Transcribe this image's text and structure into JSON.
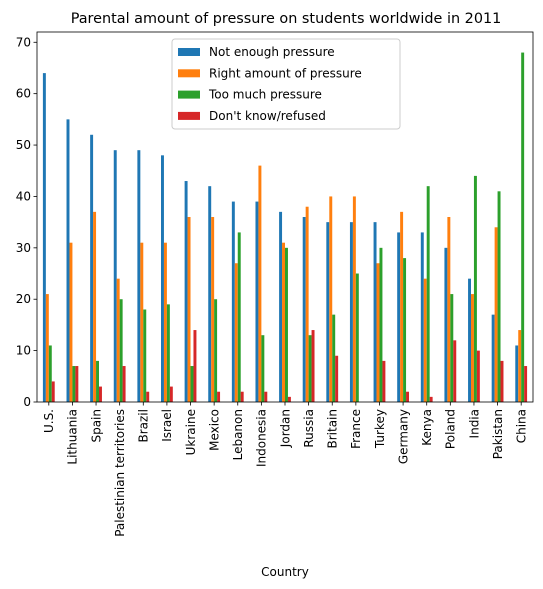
{
  "chart_data": {
    "type": "bar",
    "title": "Parental amount of pressure on students worldwide in 2011",
    "xlabel": "Country",
    "ylabel": "",
    "ylim": [
      0,
      72
    ],
    "yticks": [
      0,
      10,
      20,
      30,
      40,
      50,
      60,
      70
    ],
    "legend_position": "top-center",
    "grid": false,
    "categories": [
      "U.S.",
      "Lithuania",
      "Spain",
      "Palestinian territories",
      "Brazil",
      "Israel",
      "Ukraine",
      "Mexico",
      "Lebanon",
      "Indonesia",
      "Jordan",
      "Russia",
      "Britain",
      "France",
      "Turkey",
      "Germany",
      "Kenya",
      "Poland",
      "India",
      "Pakistan",
      "China"
    ],
    "series": [
      {
        "name": "Not enough pressure",
        "color": "#1f77b4",
        "values": [
          64,
          55,
          52,
          49,
          49,
          48,
          43,
          42,
          39,
          39,
          37,
          36,
          35,
          35,
          35,
          33,
          33,
          30,
          24,
          17,
          11
        ]
      },
      {
        "name": "Right amount of pressure",
        "color": "#ff7f0e",
        "values": [
          21,
          31,
          37,
          24,
          31,
          31,
          36,
          36,
          27,
          46,
          31,
          38,
          40,
          40,
          27,
          37,
          24,
          36,
          21,
          34,
          14
        ]
      },
      {
        "name": "Too much pressure",
        "color": "#2ca02c",
        "values": [
          11,
          7,
          8,
          20,
          18,
          19,
          7,
          20,
          33,
          13,
          30,
          13,
          17,
          25,
          30,
          28,
          42,
          21,
          44,
          41,
          68
        ]
      },
      {
        "name": "Don't know/refused",
        "color": "#d62728",
        "values": [
          4,
          7,
          3,
          7,
          2,
          3,
          14,
          2,
          2,
          2,
          1,
          14,
          9,
          0,
          8,
          2,
          1,
          12,
          10,
          8,
          7
        ]
      }
    ]
  }
}
